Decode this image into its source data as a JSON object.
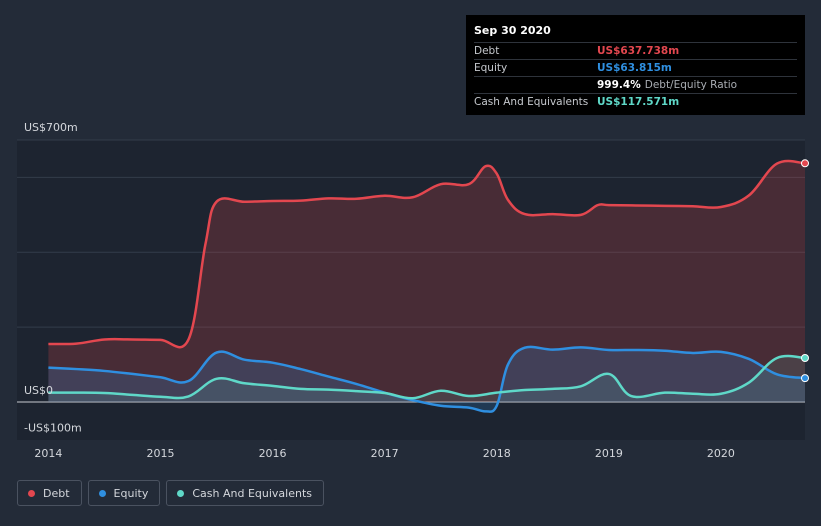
{
  "tooltip": {
    "date": "Sep 30 2020",
    "rows": [
      {
        "label": "Debt",
        "value": "US$637.738m"
      },
      {
        "label": "Equity",
        "value": "US$63.815m"
      },
      {
        "label": "",
        "value": "999.4%",
        "suffix": "Debt/Equity Ratio"
      },
      {
        "label": "Cash And Equivalents",
        "value": "US$117.571m"
      }
    ]
  },
  "legend": [
    {
      "label": "Debt",
      "color": "#e3474f"
    },
    {
      "label": "Equity",
      "color": "#2f8fe0"
    },
    {
      "label": "Cash And Equivalents",
      "color": "#5fd8c8"
    }
  ],
  "chart_data": {
    "type": "line",
    "ylim": [
      -100,
      700
    ],
    "y_ticks": [
      {
        "value": 700,
        "label": "US$700m"
      },
      {
        "value": 0,
        "label": "US$0"
      },
      {
        "value": -100,
        "label": "-US$100m"
      }
    ],
    "x_ticks": [
      {
        "value": 2014,
        "label": "2014"
      },
      {
        "value": 2015,
        "label": "2015"
      },
      {
        "value": 2016,
        "label": "2016"
      },
      {
        "value": 2017,
        "label": "2017"
      },
      {
        "value": 2018,
        "label": "2018"
      },
      {
        "value": 2019,
        "label": "2019"
      },
      {
        "value": 2020,
        "label": "2020"
      }
    ],
    "xlim": [
      2013.72,
      2020.75
    ],
    "series": [
      {
        "name": "Debt",
        "color": "#e3474f",
        "points": [
          [
            2014.0,
            155
          ],
          [
            2014.25,
            156
          ],
          [
            2014.5,
            167
          ],
          [
            2014.75,
            167
          ],
          [
            2015.0,
            166
          ],
          [
            2015.25,
            167
          ],
          [
            2015.4,
            420
          ],
          [
            2015.5,
            535
          ],
          [
            2015.75,
            535
          ],
          [
            2016.0,
            537
          ],
          [
            2016.25,
            538
          ],
          [
            2016.5,
            544
          ],
          [
            2016.75,
            543
          ],
          [
            2017.0,
            551
          ],
          [
            2017.25,
            547
          ],
          [
            2017.5,
            582
          ],
          [
            2017.75,
            582
          ],
          [
            2017.9,
            630
          ],
          [
            2018.0,
            610
          ],
          [
            2018.1,
            540
          ],
          [
            2018.25,
            502
          ],
          [
            2018.5,
            502
          ],
          [
            2018.75,
            500
          ],
          [
            2018.9,
            526
          ],
          [
            2019.0,
            526
          ],
          [
            2019.25,
            525
          ],
          [
            2019.5,
            524
          ],
          [
            2019.75,
            523
          ],
          [
            2020.0,
            521
          ],
          [
            2020.25,
            552
          ],
          [
            2020.5,
            637
          ],
          [
            2020.75,
            637.738
          ]
        ]
      },
      {
        "name": "Equity",
        "color": "#2f8fe0",
        "points": [
          [
            2014.0,
            92
          ],
          [
            2014.25,
            88
          ],
          [
            2014.5,
            83
          ],
          [
            2014.75,
            75
          ],
          [
            2015.0,
            66
          ],
          [
            2015.25,
            56
          ],
          [
            2015.5,
            132
          ],
          [
            2015.75,
            113
          ],
          [
            2016.0,
            105
          ],
          [
            2016.25,
            88
          ],
          [
            2016.5,
            68
          ],
          [
            2016.75,
            48
          ],
          [
            2017.0,
            25
          ],
          [
            2017.25,
            5
          ],
          [
            2017.5,
            -10
          ],
          [
            2017.75,
            -15
          ],
          [
            2017.9,
            -25
          ],
          [
            2018.0,
            -10
          ],
          [
            2018.1,
            100
          ],
          [
            2018.25,
            145
          ],
          [
            2018.5,
            140
          ],
          [
            2018.75,
            146
          ],
          [
            2019.0,
            139
          ],
          [
            2019.25,
            139
          ],
          [
            2019.5,
            137
          ],
          [
            2019.75,
            131
          ],
          [
            2020.0,
            134
          ],
          [
            2020.25,
            115
          ],
          [
            2020.5,
            74
          ],
          [
            2020.75,
            63.815
          ]
        ]
      },
      {
        "name": "Cash And Equivalents",
        "color": "#5fd8c8",
        "points": [
          [
            2014.0,
            25
          ],
          [
            2014.25,
            25
          ],
          [
            2014.5,
            24
          ],
          [
            2014.75,
            19
          ],
          [
            2015.0,
            14
          ],
          [
            2015.25,
            15
          ],
          [
            2015.5,
            62
          ],
          [
            2015.75,
            50
          ],
          [
            2016.0,
            43
          ],
          [
            2016.25,
            35
          ],
          [
            2016.5,
            33
          ],
          [
            2016.75,
            29
          ],
          [
            2017.0,
            24
          ],
          [
            2017.25,
            10
          ],
          [
            2017.5,
            30
          ],
          [
            2017.75,
            16
          ],
          [
            2018.0,
            25
          ],
          [
            2018.25,
            32
          ],
          [
            2018.5,
            35
          ],
          [
            2018.75,
            42
          ],
          [
            2019.0,
            75
          ],
          [
            2019.2,
            16
          ],
          [
            2019.5,
            25
          ],
          [
            2019.75,
            22
          ],
          [
            2020.0,
            22
          ],
          [
            2020.25,
            52
          ],
          [
            2020.5,
            117.571
          ],
          [
            2020.75,
            117.571
          ]
        ]
      }
    ]
  }
}
